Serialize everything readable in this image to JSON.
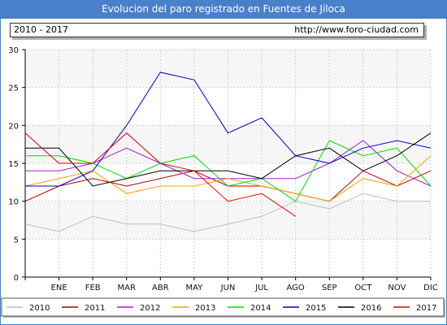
{
  "title": "Evolucion del paro registrado en Fuentes de Jiloca",
  "range_label": "2010 - 2017",
  "url": "http://www.foro-ciudad.com",
  "chart_data": {
    "type": "line",
    "categories": [
      "",
      "ENE",
      "FEB",
      "MAR",
      "ABR",
      "MAY",
      "JUN",
      "JUL",
      "AGO",
      "SEP",
      "OCT",
      "NOV",
      "DIC"
    ],
    "yticks": [
      0,
      5,
      10,
      15,
      20,
      25,
      30
    ],
    "ylim": [
      0,
      30
    ],
    "grid": true,
    "legend": "bottom",
    "series": [
      {
        "name": "2010",
        "color": "#c0c0c0",
        "values": [
          7,
          6,
          8,
          7,
          7,
          6,
          7,
          8,
          10,
          9,
          11,
          10,
          10
        ]
      },
      {
        "name": "2011",
        "color": "#b00000",
        "values": [
          10,
          12,
          13,
          12,
          13,
          14,
          12,
          12,
          11,
          10,
          14,
          12,
          14
        ]
      },
      {
        "name": "2012",
        "color": "#a020d0",
        "values": [
          14,
          14,
          15,
          17,
          15,
          13,
          13,
          13,
          13,
          15,
          18,
          14,
          12
        ]
      },
      {
        "name": "2013",
        "color": "#ffa000",
        "values": [
          12,
          13,
          14,
          11,
          12,
          12,
          13,
          12,
          11,
          10,
          13,
          12,
          16
        ]
      },
      {
        "name": "2014",
        "color": "#00dd00",
        "values": [
          16,
          16,
          15,
          13,
          15,
          16,
          12,
          13,
          10,
          18,
          16,
          17,
          12
        ]
      },
      {
        "name": "2015",
        "color": "#0000cc",
        "values": [
          12,
          12,
          14,
          20,
          27,
          26,
          19,
          21,
          16,
          15,
          17,
          18,
          17
        ]
      },
      {
        "name": "2016",
        "color": "#000000",
        "values": [
          17,
          17,
          12,
          13,
          14,
          14,
          14,
          13,
          16,
          17,
          14,
          16,
          19
        ]
      },
      {
        "name": "2017",
        "color": "#ee0000",
        "values": [
          19,
          15,
          15,
          19,
          15,
          14,
          10,
          11,
          8,
          null,
          null,
          null,
          null
        ]
      }
    ]
  }
}
